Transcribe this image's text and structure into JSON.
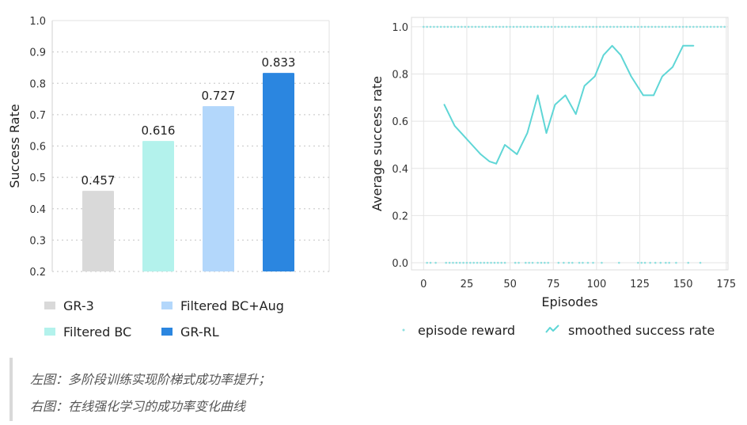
{
  "chart_data": [
    {
      "type": "bar",
      "ylabel": "Success Rate",
      "ylim": [
        0.2,
        1.0
      ],
      "yticks": [
        "0.2",
        "0.3",
        "0.4",
        "0.5",
        "0.6",
        "0.7",
        "0.8",
        "0.9",
        "1.0"
      ],
      "grid": "horizontal dotted",
      "categories": [
        "GR-3",
        "Filtered BC",
        "Filtered BC+Aug",
        "GR-RL"
      ],
      "values": [
        0.457,
        0.616,
        0.727,
        0.833
      ],
      "value_labels": [
        "0.457",
        "0.616",
        "0.727",
        "0.833"
      ],
      "colors": [
        "#d9d9d9",
        "#b3f2ec",
        "#b3d7fb",
        "#2b86e0"
      ],
      "legend": [
        "GR-3",
        "Filtered BC+Aug",
        "Filtered BC",
        "GR-RL"
      ],
      "legend_placement": "bottom"
    },
    {
      "type": "line",
      "xlabel": "Episodes",
      "ylabel": "Average success rate",
      "xlim": [
        -7,
        176
      ],
      "ylim": [
        -0.03,
        1.04
      ],
      "xticks": [
        "0",
        "25",
        "50",
        "75",
        "100",
        "125",
        "150",
        "175"
      ],
      "yticks": [
        "0.0",
        "0.2",
        "0.4",
        "0.6",
        "0.8",
        "1.0"
      ],
      "grid": "on",
      "legend_placement": "bottom",
      "series": [
        {
          "name": "smoothed success rate",
          "color": "#5fd6d6",
          "x": [
            12,
            18,
            23,
            28,
            33,
            38,
            42,
            47,
            54,
            60,
            66,
            71,
            76,
            82,
            88,
            93,
            99,
            104,
            109,
            114,
            120,
            127,
            133,
            138,
            144,
            150,
            156
          ],
          "y": [
            0.67,
            0.58,
            0.54,
            0.5,
            0.46,
            0.43,
            0.42,
            0.5,
            0.46,
            0.55,
            0.71,
            0.55,
            0.67,
            0.71,
            0.63,
            0.75,
            0.79,
            0.88,
            0.92,
            0.88,
            0.79,
            0.71,
            0.71,
            0.79,
            0.83,
            0.92,
            0.92
          ]
        },
        {
          "name": "episode reward",
          "color": "#8fe0e0",
          "rewards_at_1": [
            0,
            2,
            4,
            6,
            8,
            10,
            12,
            14,
            16,
            18,
            20,
            22,
            24,
            26,
            28,
            30,
            32,
            34,
            36,
            38,
            40,
            42,
            44,
            46,
            48,
            50,
            52,
            54,
            56,
            58,
            60,
            62,
            64,
            66,
            68,
            70,
            72,
            74,
            76,
            78,
            80,
            82,
            84,
            86,
            88,
            90,
            92,
            94,
            96,
            98,
            100,
            102,
            104,
            106,
            108,
            110,
            112,
            114,
            116,
            118,
            120,
            122,
            124,
            126,
            128,
            130,
            132,
            134,
            136,
            138,
            140,
            142,
            144,
            146,
            148,
            150,
            152,
            154,
            156,
            158,
            160,
            162,
            164,
            166,
            168,
            170,
            172,
            174
          ],
          "rewards_at_0": [
            2,
            4,
            7,
            13,
            15,
            17,
            19,
            21,
            23,
            25,
            27,
            29,
            31,
            33,
            35,
            37,
            39,
            41,
            43,
            45,
            47,
            53,
            55,
            59,
            61,
            63,
            66,
            68,
            70,
            72,
            78,
            81,
            84,
            86,
            90,
            92,
            95,
            98,
            103,
            113,
            124,
            126,
            128,
            131,
            134,
            137,
            140,
            142,
            146,
            153,
            160
          ]
        }
      ]
    }
  ],
  "caption": {
    "line1": "左图：多阶段训练实现阶梯式成功率提升；",
    "line2": "右图：在线强化学习的成功率变化曲线"
  }
}
